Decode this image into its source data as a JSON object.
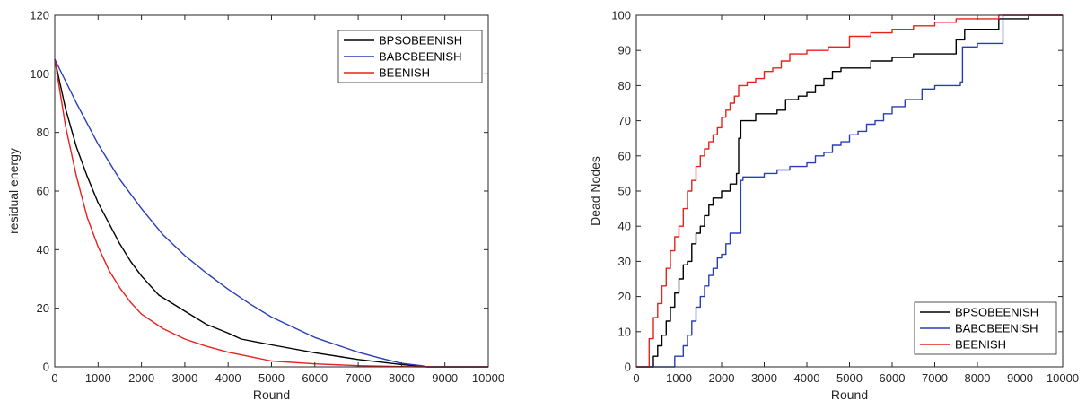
{
  "chart_data": [
    {
      "type": "line",
      "xlabel": "Round",
      "ylabel": "residual energy",
      "xlim": [
        0,
        10000
      ],
      "ylim": [
        0,
        120
      ],
      "xticks": [
        0,
        1000,
        2000,
        3000,
        4000,
        5000,
        6000,
        7000,
        8000,
        9000,
        10000
      ],
      "yticks": [
        0,
        20,
        40,
        60,
        80,
        100,
        120
      ],
      "grid": false,
      "legend_position": "top-right",
      "series": [
        {
          "name": "BPSOBEENISH",
          "color": "#000000",
          "x": [
            0,
            250,
            500,
            750,
            1000,
            1250,
            1500,
            1750,
            2000,
            2400,
            3000,
            3500,
            4000,
            4300,
            5000,
            6000,
            7000,
            8000,
            8600,
            9000,
            10000
          ],
          "y": [
            105,
            88,
            75,
            65,
            56,
            49,
            42,
            36,
            31,
            24.5,
            19,
            14.5,
            11.5,
            9.5,
            7.5,
            4.8,
            2.5,
            0.8,
            0,
            0,
            0
          ]
        },
        {
          "name": "BABCBEENISH",
          "color": "#2a3db5",
          "x": [
            0,
            500,
            1000,
            1500,
            2000,
            2500,
            3000,
            3500,
            4000,
            4500,
            5000,
            5500,
            6000,
            6500,
            7000,
            7500,
            8000,
            8500,
            8600,
            9000,
            10000
          ],
          "y": [
            105,
            90,
            76,
            64,
            54,
            45,
            38,
            32,
            26.5,
            21.5,
            17,
            13.5,
            10,
            7.5,
            5,
            3,
            1.2,
            0.3,
            0,
            0,
            0
          ]
        },
        {
          "name": "BEENISH",
          "color": "#e8211c",
          "x": [
            0,
            250,
            500,
            750,
            1000,
            1250,
            1500,
            1750,
            2000,
            2500,
            3000,
            3500,
            4000,
            4500,
            5000,
            6000,
            7000,
            8000,
            8600,
            9000,
            10000
          ],
          "y": [
            105,
            82,
            65,
            51,
            41,
            33,
            27,
            22,
            18,
            13,
            9.5,
            7,
            5,
            3.5,
            2,
            1,
            0.4,
            0.1,
            0,
            0,
            0
          ]
        }
      ]
    },
    {
      "type": "line",
      "xlabel": "Round",
      "ylabel": "Dead Nodes",
      "xlim": [
        0,
        10000
      ],
      "ylim": [
        0,
        100
      ],
      "xticks": [
        0,
        1000,
        2000,
        3000,
        4000,
        5000,
        6000,
        7000,
        8000,
        9000,
        10000
      ],
      "yticks": [
        0,
        10,
        20,
        30,
        40,
        50,
        60,
        70,
        80,
        90,
        100
      ],
      "grid": false,
      "legend_position": "bottom-right",
      "series": [
        {
          "name": "BPSOBEENISH",
          "color": "#000000",
          "x": [
            0,
            300,
            400,
            500,
            600,
            700,
            800,
            900,
            1000,
            1100,
            1200,
            1300,
            1400,
            1500,
            1600,
            1700,
            1800,
            2000,
            2200,
            2350,
            2400,
            2450,
            2500,
            2800,
            3000,
            3300,
            3500,
            3800,
            4000,
            4200,
            4400,
            4600,
            4800,
            5000,
            5500,
            6000,
            6500,
            7000,
            7400,
            7500,
            7700,
            8000,
            8500,
            9000,
            9200,
            10000
          ],
          "y": [
            0,
            0,
            3,
            6,
            9,
            13,
            17,
            21,
            25,
            29,
            30,
            35,
            38,
            40,
            43,
            46,
            48,
            50,
            52,
            55,
            65,
            70,
            70,
            72,
            72,
            73,
            76,
            77,
            78,
            80,
            82,
            84,
            85,
            85,
            87,
            88,
            89,
            89,
            89,
            93,
            96,
            96,
            99,
            99,
            100,
            100
          ]
        },
        {
          "name": "BABCBEENISH",
          "color": "#2a3db5",
          "x": [
            0,
            800,
            900,
            1000,
            1100,
            1200,
            1300,
            1400,
            1500,
            1600,
            1700,
            1800,
            1900,
            2000,
            2100,
            2200,
            2400,
            2450,
            2500,
            2800,
            3000,
            3300,
            3600,
            4000,
            4200,
            4400,
            4600,
            4800,
            5000,
            5200,
            5400,
            5600,
            5800,
            6000,
            6300,
            6700,
            7000,
            7600,
            7650,
            7700,
            8000,
            8500,
            8600,
            9000,
            10000
          ],
          "y": [
            0,
            0,
            3,
            3,
            6,
            9,
            13,
            17,
            20,
            23,
            26,
            28,
            31,
            32,
            35,
            38,
            38,
            53,
            54,
            54,
            55,
            56,
            57,
            58,
            60,
            61,
            63,
            64,
            66,
            67,
            69,
            70,
            72,
            74,
            76,
            79,
            80,
            81,
            91,
            91,
            92,
            92,
            100,
            100,
            100
          ]
        },
        {
          "name": "BEENISH",
          "color": "#e8211c",
          "x": [
            0,
            200,
            300,
            400,
            500,
            600,
            700,
            800,
            900,
            1000,
            1100,
            1200,
            1300,
            1400,
            1500,
            1600,
            1700,
            1800,
            1900,
            2000,
            2100,
            2200,
            2300,
            2400,
            2600,
            2800,
            3000,
            3200,
            3400,
            3600,
            3800,
            4000,
            4500,
            5000,
            5500,
            6000,
            6500,
            7000,
            7500,
            8000,
            8500,
            9000,
            10000
          ],
          "y": [
            0,
            0,
            8,
            14,
            18,
            23,
            28,
            33,
            37,
            40,
            45,
            50,
            53,
            57,
            60,
            62,
            64,
            66,
            68,
            71,
            73,
            75,
            77,
            80,
            81,
            82,
            84,
            85,
            87,
            89,
            89,
            90,
            91,
            94,
            95,
            96,
            97,
            98,
            99,
            99,
            100,
            100,
            100
          ]
        }
      ]
    }
  ]
}
